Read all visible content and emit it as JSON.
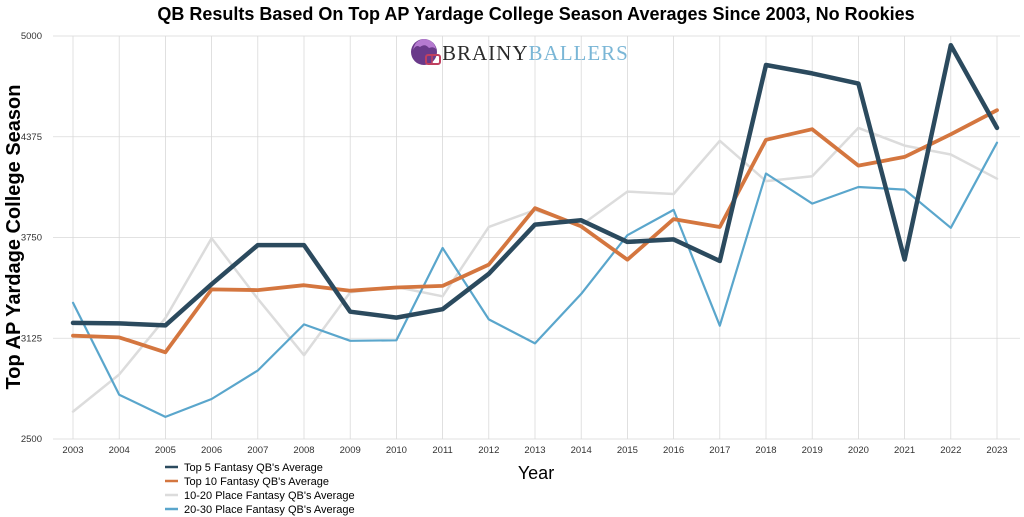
{
  "chart_data": {
    "type": "line",
    "title": "QB Results Based On Top AP Yardage College Season Averages Since 2003, No Rookies",
    "xlabel": "Year",
    "ylabel": "Top AP Yardage College Season",
    "ylim": [
      2500,
      5000
    ],
    "yticks": [
      2500,
      3125,
      3750,
      4375,
      5000
    ],
    "grid": true,
    "legend_position": "bottom-left",
    "categories": [
      "2003",
      "2004",
      "2005",
      "2006",
      "2007",
      "2008",
      "2009",
      "2010",
      "2011",
      "2012",
      "2013",
      "2014",
      "2015",
      "2016",
      "2017",
      "2018",
      "2019",
      "2020",
      "2021",
      "2022",
      "2023"
    ],
    "series": [
      {
        "name": "Top 5 Fantasy QB's Average",
        "color": "#2b4a5e",
        "values": [
          3220,
          3217,
          3205,
          3460,
          3703,
          3703,
          3290,
          3253,
          3305,
          3525,
          3830,
          3857,
          3723,
          3738,
          3604,
          4820,
          4768,
          4705,
          3613,
          4943,
          4430
        ]
      },
      {
        "name": "Top 10 Fantasy QB's Average",
        "color": "#d4763f",
        "values": [
          3141,
          3130,
          3038,
          3428,
          3424,
          3454,
          3420,
          3440,
          3450,
          3582,
          3932,
          3819,
          3612,
          3864,
          3815,
          4356,
          4422,
          4196,
          4250,
          4390,
          4540
        ]
      },
      {
        "name": "10-20 Place Fantasy QB's  Average",
        "color": "#dcdcdc",
        "values": [
          2670,
          2900,
          3250,
          3745,
          3370,
          3020,
          3410,
          3443,
          3385,
          3816,
          3920,
          3827,
          4035,
          4020,
          4350,
          4100,
          4130,
          4430,
          4320,
          4265,
          4115
        ]
      },
      {
        "name": "20-30 Place Fantasy QB's  Average",
        "color": "#5aa6cc",
        "values": [
          3345,
          2775,
          2637,
          2748,
          2925,
          3211,
          3109,
          3112,
          3685,
          3242,
          3093,
          3400,
          3764,
          3921,
          3203,
          4147,
          3960,
          4063,
          4047,
          3810,
          4338
        ]
      }
    ]
  },
  "logo": {
    "part1": "BRAINY",
    "part2": "BALLERS",
    "color1": "#2b2b2b",
    "color2": "#7ab6d6",
    "icon": "brain-helmet-icon"
  }
}
